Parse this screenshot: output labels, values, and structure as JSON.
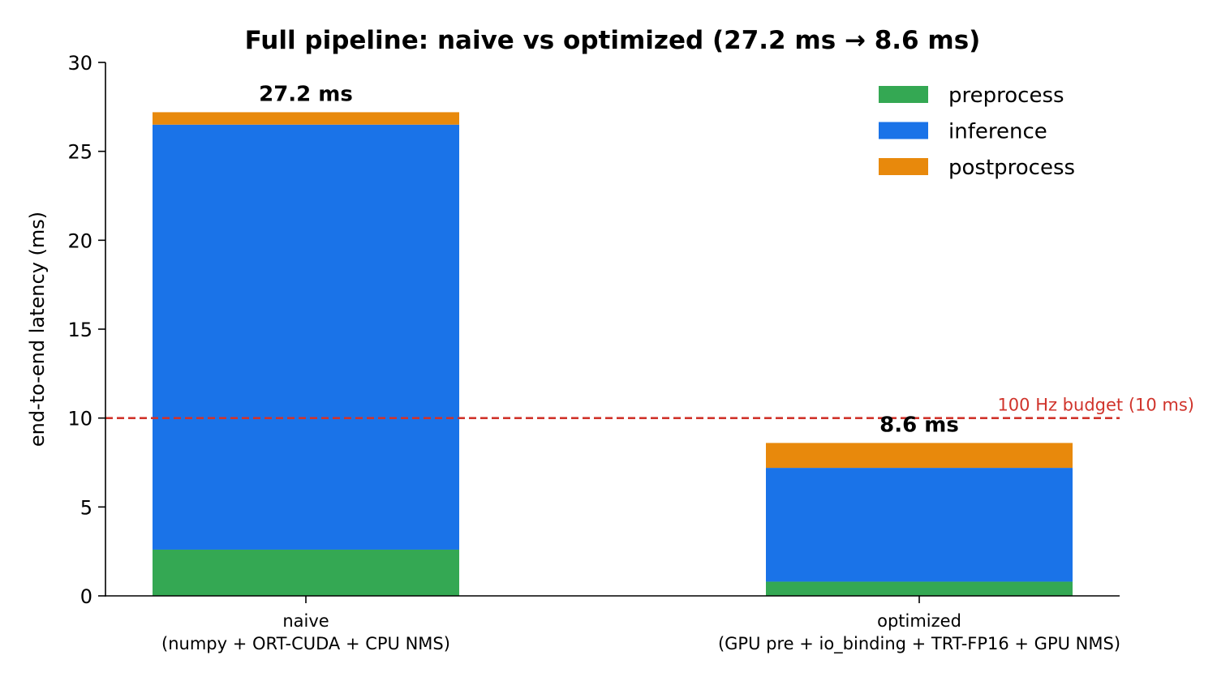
{
  "chart_data": {
    "type": "bar",
    "stacked": true,
    "title": "Full pipeline: naive vs optimized (27.2 ms → 8.6 ms)",
    "xlabel": "",
    "ylabel": "end-to-end latency (ms)",
    "ylim": [
      0,
      30
    ],
    "yticks": [
      0,
      5,
      10,
      15,
      20,
      25,
      30
    ],
    "grid": false,
    "legend_position": "top-right",
    "categories": [
      {
        "line1": "naive",
        "line2": "(numpy + ORT-CUDA + CPU NMS)"
      },
      {
        "line1": "optimized",
        "line2": "(GPU pre + io_binding + TRT-FP16 + GPU NMS)"
      }
    ],
    "series": [
      {
        "name": "preprocess",
        "color": "#34a853",
        "values": [
          2.6,
          0.8
        ]
      },
      {
        "name": "inference",
        "color": "#1a73e8",
        "values": [
          23.9,
          6.4
        ]
      },
      {
        "name": "postprocess",
        "color": "#e8890c",
        "values": [
          0.7,
          1.4
        ]
      }
    ],
    "totals": [
      27.2,
      8.6
    ],
    "total_labels": [
      "27.2 ms",
      "8.6 ms"
    ],
    "reference_line": {
      "value": 10,
      "label": "100 Hz budget (10 ms)",
      "color": "#d0342c",
      "style": "dashed"
    }
  }
}
